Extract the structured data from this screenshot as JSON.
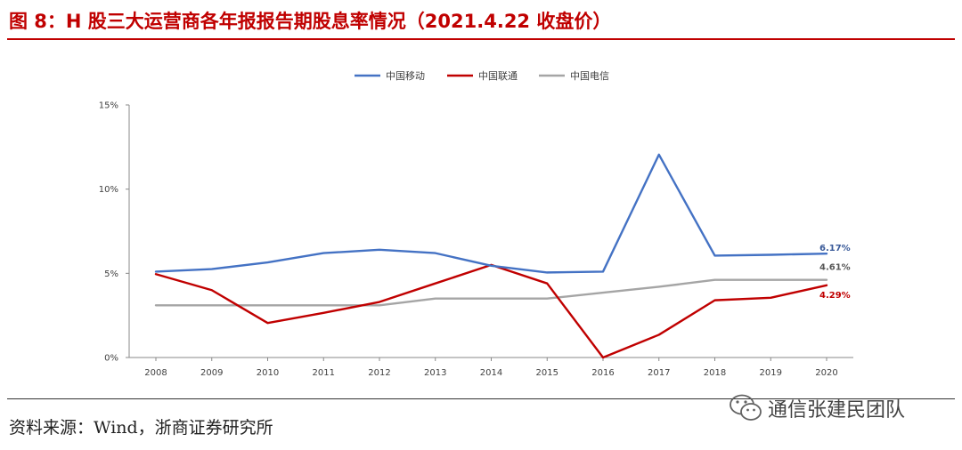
{
  "title": "图 8：H 股三大运营商各年报报告期股息率情况（2021.4.22 收盘价）",
  "source": "资料来源：Wind，浙商证券研究所",
  "watermark": "通信张建民团队",
  "colors": {
    "title": "#c00000",
    "cmcc": "#4472c4",
    "unicom": "#c00000",
    "telecom": "#a5a5a5",
    "axis": "#888888"
  },
  "chart_data": {
    "type": "line",
    "title": "",
    "xlabel": "",
    "ylabel": "",
    "ylim": [
      0,
      15
    ],
    "yticks": [
      0,
      5,
      10,
      15
    ],
    "ytick_labels": [
      "0%",
      "5%",
      "10%",
      "15%"
    ],
    "categories": [
      "2008",
      "2009",
      "2010",
      "2011",
      "2012",
      "2013",
      "2014",
      "2015",
      "2016",
      "2017",
      "2018",
      "2019",
      "2020"
    ],
    "legend_position": "top-center",
    "series": [
      {
        "name": "中国移动",
        "color": "#4472c4",
        "values": [
          5.1,
          5.25,
          5.65,
          6.2,
          6.4,
          6.2,
          5.45,
          5.05,
          5.1,
          12.05,
          6.05,
          6.1,
          6.17
        ],
        "end_label": "6.17%",
        "end_label_color": "#3a5a99"
      },
      {
        "name": "中国联通",
        "color": "#c00000",
        "values": [
          4.95,
          4.0,
          2.05,
          2.65,
          3.3,
          4.4,
          5.5,
          4.4,
          0.0,
          1.35,
          3.4,
          3.55,
          4.29
        ],
        "end_label": "4.29%",
        "end_label_color": "#c00000"
      },
      {
        "name": "中国电信",
        "color": "#a5a5a5",
        "values": [
          3.1,
          3.1,
          3.1,
          3.1,
          3.1,
          3.5,
          3.5,
          3.5,
          3.85,
          4.2,
          4.61,
          4.61,
          4.61
        ],
        "end_label": "4.61%",
        "end_label_color": "#555555"
      }
    ]
  }
}
